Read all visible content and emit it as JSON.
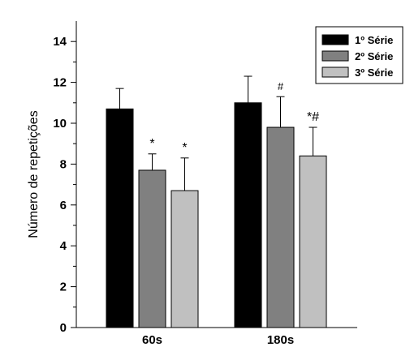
{
  "chart_data": {
    "type": "bar",
    "title": "",
    "xlabel": "",
    "ylabel": "Número de repetições",
    "categories": [
      "60s",
      "180s"
    ],
    "ylim": [
      0,
      15
    ],
    "yticks": [
      "0",
      "2",
      "4",
      "6",
      "8",
      "10",
      "12",
      "14"
    ],
    "grid": false,
    "legend_position": "top-right",
    "series": [
      {
        "name": "1º Série",
        "color": "#000000",
        "values": [
          10.7,
          11.0
        ],
        "errors": [
          1.0,
          1.3
        ],
        "annotations": [
          "",
          ""
        ]
      },
      {
        "name": "2º Série",
        "color": "#808080",
        "values": [
          7.7,
          9.8
        ],
        "errors": [
          0.8,
          1.5
        ],
        "annotations": [
          "*",
          "#"
        ]
      },
      {
        "name": "3º Série",
        "color": "#c0c0c0",
        "values": [
          6.7,
          8.4
        ],
        "errors": [
          1.6,
          1.4
        ],
        "annotations": [
          "*",
          "*#"
        ]
      }
    ]
  }
}
